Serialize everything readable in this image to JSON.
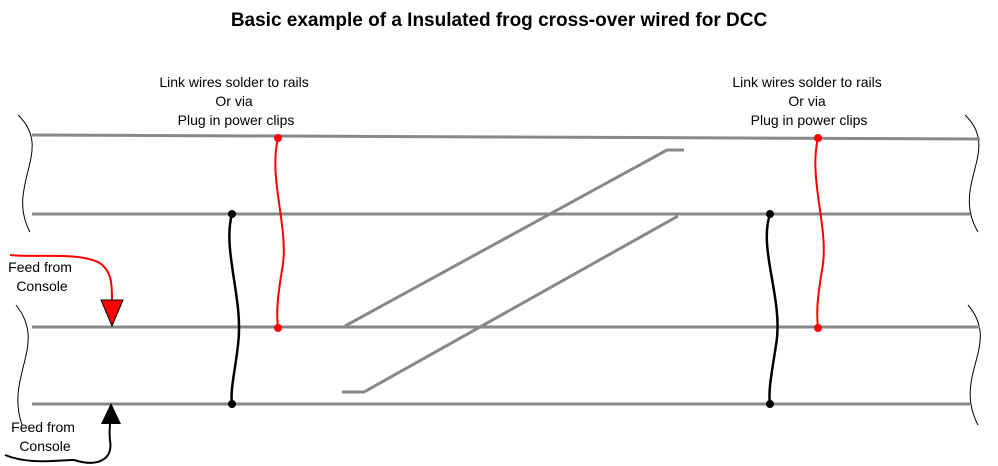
{
  "title": "Basic example of a Insulated frog cross-over wired for DCC",
  "link_labels": [
    {
      "lines": [
        "Link wires solder to rails",
        "Or via",
        "Plug in power clips"
      ]
    },
    {
      "lines": [
        "Link wires solder to rails",
        "Or via",
        "Plug in power clips"
      ]
    }
  ],
  "feeds": [
    {
      "lines": [
        "Feed from",
        "Console"
      ],
      "color": "#ff0000"
    },
    {
      "lines": [
        "Feed from",
        "Console"
      ],
      "color": "#000000"
    }
  ],
  "colors": {
    "rail": "#888888",
    "red_wire": "#ff0000",
    "black_wire": "#000000"
  }
}
